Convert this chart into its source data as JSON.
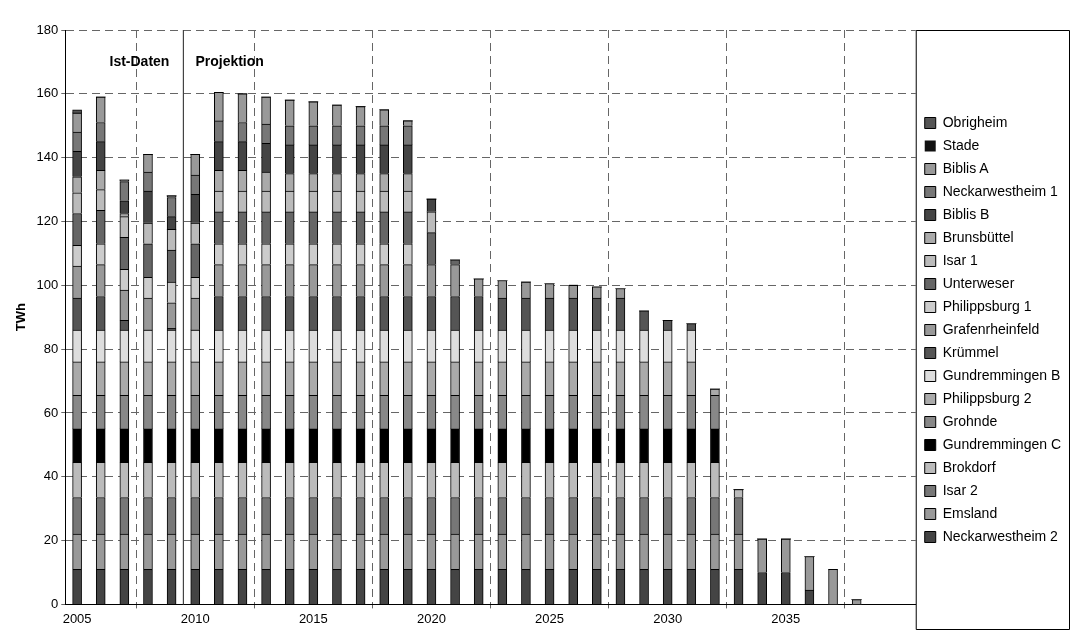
{
  "chart_data": {
    "type": "bar",
    "stacked": true,
    "ylabel": "TWh",
    "x": [
      2005,
      2006,
      2007,
      2008,
      2009,
      2010,
      2011,
      2012,
      2013,
      2014,
      2015,
      2016,
      2017,
      2018,
      2019,
      2020,
      2021,
      2022,
      2023,
      2024,
      2025,
      2026,
      2027,
      2028,
      2029,
      2030,
      2031,
      2032,
      2033,
      2034,
      2035,
      2036,
      2037,
      2038
    ],
    "xlim": [
      2004.5,
      2040.5
    ],
    "xticks": [
      2005,
      2010,
      2015,
      2020,
      2025,
      2030,
      2035
    ],
    "ylim": [
      0,
      180
    ],
    "yticks": [
      0,
      20,
      40,
      60,
      80,
      100,
      120,
      140,
      160,
      180
    ],
    "grid": true,
    "legend": "right",
    "ref_lines": [
      {
        "axis": "x",
        "value": 2009.5,
        "line_style": "solid",
        "color": "#444444"
      }
    ],
    "annotations": [
      "Ist-Daten",
      "Projektion"
    ],
    "series": [
      {
        "name": "Neckarwestheim 2",
        "color": "#444444",
        "values": [
          11,
          11,
          11,
          11,
          11,
          11,
          11,
          11,
          11,
          11,
          11,
          11,
          11,
          11,
          11,
          11,
          11,
          11,
          11,
          11,
          11,
          11,
          11,
          11,
          11,
          11,
          11,
          11,
          11,
          10,
          10,
          4.5,
          0,
          0
        ]
      },
      {
        "name": "Emsland",
        "color": "#999999",
        "values": [
          11,
          11,
          11,
          11,
          11,
          11,
          11,
          11,
          11,
          11,
          11,
          11,
          11,
          11,
          11,
          11,
          11,
          11,
          11,
          11,
          11,
          11,
          11,
          11,
          11,
          11,
          11,
          11,
          11,
          10.5,
          10.5,
          10.5,
          11,
          1.5
        ]
      },
      {
        "name": "Isar 2",
        "color": "#777777",
        "values": [
          11.5,
          11.5,
          11.5,
          11.5,
          11.5,
          11.5,
          11.5,
          11.5,
          11.5,
          11.5,
          11.5,
          11.5,
          11.5,
          11.5,
          11.5,
          11.5,
          11.5,
          11.5,
          11.5,
          11.5,
          11.5,
          11.5,
          11.5,
          11.5,
          11.5,
          11.5,
          11.5,
          11.5,
          11.5,
          0,
          0,
          0,
          0,
          0
        ]
      },
      {
        "name": "Brokdorf",
        "color": "#bbbbbb",
        "values": [
          11,
          11,
          11,
          11,
          11,
          11,
          11,
          11,
          11,
          11,
          11,
          11,
          11,
          11,
          11,
          11,
          11,
          11,
          11,
          11,
          11,
          11,
          11,
          11,
          11,
          11,
          11,
          11,
          2.5,
          0,
          0,
          0,
          0,
          0
        ]
      },
      {
        "name": "Gundremmingen C",
        "color": "#000000",
        "values": [
          10.5,
          10.5,
          10.5,
          10.5,
          10.5,
          10.5,
          10.5,
          10.5,
          10.5,
          10.5,
          10.5,
          10.5,
          10.5,
          10.5,
          10.5,
          10.5,
          10.5,
          10.5,
          10.5,
          10.5,
          10.5,
          10.5,
          10.5,
          10.5,
          10.5,
          10.5,
          10.5,
          10.5,
          0,
          0,
          0,
          0,
          0,
          0
        ]
      },
      {
        "name": "Grohnde",
        "color": "#888888",
        "values": [
          10.5,
          10.5,
          10.5,
          10.5,
          10.5,
          10.5,
          10.5,
          10.5,
          10.5,
          10.5,
          10.5,
          10.5,
          10.5,
          10.5,
          10.5,
          10.5,
          10.5,
          10.5,
          10.5,
          10.5,
          10.5,
          10.5,
          10.5,
          10.5,
          10.5,
          10.5,
          10.5,
          10.5,
          0,
          0,
          0,
          0,
          0,
          0
        ]
      },
      {
        "name": "Philippsburg 2",
        "color": "#aaaaaa",
        "values": [
          10.5,
          10.5,
          10.5,
          10.5,
          10.5,
          10.5,
          10.5,
          10.5,
          10.5,
          10.5,
          10.5,
          10.5,
          10.5,
          10.5,
          10.5,
          10.5,
          10.5,
          10.5,
          10.5,
          10.5,
          10.5,
          10.5,
          10.5,
          10.5,
          10.5,
          10.5,
          10.5,
          2,
          0,
          0,
          0,
          0,
          0,
          0
        ]
      },
      {
        "name": "Gundremmingen B",
        "color": "#dddddd",
        "values": [
          10,
          10,
          10,
          10,
          10,
          10,
          10,
          10,
          10,
          10,
          10,
          10,
          10,
          10,
          10,
          10,
          10,
          10,
          10,
          10,
          10,
          10,
          10,
          10,
          10,
          10,
          10,
          0,
          0,
          0,
          0,
          0,
          0,
          0
        ]
      },
      {
        "name": "Krümmel",
        "color": "#555555",
        "values": [
          10,
          10.5,
          3,
          0,
          0.5,
          0,
          10.5,
          10.5,
          10.5,
          10.5,
          10.5,
          10.5,
          10.5,
          10.5,
          10.5,
          10.5,
          10.5,
          10.5,
          10,
          10,
          10,
          10,
          10,
          10,
          6,
          3,
          2,
          0,
          0,
          0,
          0,
          0,
          0,
          0
        ]
      },
      {
        "name": "Grafenrheinfeld",
        "color": "#999999",
        "values": [
          10,
          10,
          9.5,
          10,
          8,
          10,
          10,
          10,
          10,
          10,
          10,
          10,
          10,
          10,
          10,
          10,
          10,
          5.5,
          5.5,
          5,
          4.5,
          4,
          3.5,
          3,
          0,
          0,
          0,
          0,
          0,
          0,
          0,
          0,
          0,
          0
        ]
      },
      {
        "name": "Philippsburg 1",
        "color": "#cccccc",
        "values": [
          6.5,
          6.5,
          6.5,
          6.5,
          6.5,
          6.5,
          6.5,
          6.5,
          6.5,
          6.5,
          6.5,
          6.5,
          6.5,
          6.5,
          6.5,
          0,
          0,
          0,
          0,
          0,
          0,
          0,
          0,
          0,
          0,
          0,
          0,
          0,
          0,
          0,
          0,
          0,
          0,
          0
        ]
      },
      {
        "name": "Unterweser",
        "color": "#666666",
        "values": [
          10,
          10.5,
          10,
          10.5,
          10,
          10.5,
          10,
          10,
          10,
          10,
          10,
          10,
          10,
          10,
          10,
          10,
          1.5,
          0,
          0,
          0,
          0,
          0,
          0,
          0,
          0,
          0,
          0,
          0,
          0,
          0,
          0,
          0,
          0,
          0
        ]
      },
      {
        "name": "Isar 1",
        "color": "#bbbbbb",
        "values": [
          6.5,
          6.5,
          6.5,
          6.5,
          6.5,
          6.5,
          6.5,
          6.5,
          6.5,
          6.5,
          6.5,
          6.5,
          6.5,
          6.5,
          6.5,
          6.5,
          0,
          0,
          0,
          0,
          0,
          0,
          0,
          0,
          0,
          0,
          0,
          0,
          0,
          0,
          0,
          0,
          0,
          0
        ]
      },
      {
        "name": "Brunsbüttel",
        "color": "#aaaaaa",
        "values": [
          5,
          6,
          1,
          0,
          0,
          0,
          6.5,
          6.5,
          6,
          5.5,
          5.5,
          5.5,
          5.5,
          5.5,
          5.5,
          0,
          0,
          0,
          0,
          0,
          0,
          0,
          0,
          0,
          0,
          0,
          0,
          0,
          0,
          0,
          0,
          0,
          0,
          0
        ]
      },
      {
        "name": "Biblis B",
        "color": "#444444",
        "values": [
          8,
          9,
          4,
          10,
          4,
          9,
          9,
          9,
          9,
          9,
          9,
          9,
          9,
          9,
          9,
          4,
          0,
          0,
          0,
          0,
          0,
          0,
          0,
          0,
          0,
          0,
          0,
          0,
          0,
          0,
          0,
          0,
          0,
          0
        ]
      },
      {
        "name": "Neckarwestheim 1",
        "color": "#777777",
        "values": [
          6,
          6,
          6,
          6,
          6,
          6,
          6.5,
          6,
          6,
          6,
          6,
          6,
          6,
          6,
          6,
          0,
          0,
          0,
          0,
          0,
          0,
          0,
          0,
          0,
          0,
          0,
          0,
          0,
          0,
          0,
          0,
          0,
          0,
          0
        ]
      },
      {
        "name": "Biblis A",
        "color": "#999999",
        "values": [
          6,
          8,
          0.5,
          5.5,
          0.5,
          6.5,
          9,
          9,
          8.5,
          8,
          7.5,
          6.5,
          6,
          5,
          1.5,
          0,
          0,
          0,
          0,
          0,
          0,
          0,
          0,
          0,
          0,
          0,
          0,
          0,
          0,
          0,
          0,
          0,
          0,
          0
        ]
      },
      {
        "name": "Stade",
        "color": "#111111",
        "values": [
          0,
          0,
          0,
          0,
          0,
          0,
          0,
          0,
          0,
          0,
          0,
          0,
          0,
          0,
          0,
          0,
          0,
          0,
          0,
          0,
          0,
          0,
          0,
          0,
          0,
          0,
          0,
          0,
          0,
          0,
          0,
          0,
          0,
          0
        ]
      },
      {
        "name": "Obrigheim",
        "color": "#555555",
        "values": [
          1,
          0,
          0,
          0,
          0,
          0,
          0,
          0,
          0,
          0,
          0,
          0,
          0,
          0,
          0,
          0,
          0,
          0,
          0,
          0,
          0,
          0,
          0,
          0,
          0,
          0,
          0,
          0,
          0,
          0,
          0,
          0,
          0,
          0
        ]
      }
    ]
  }
}
